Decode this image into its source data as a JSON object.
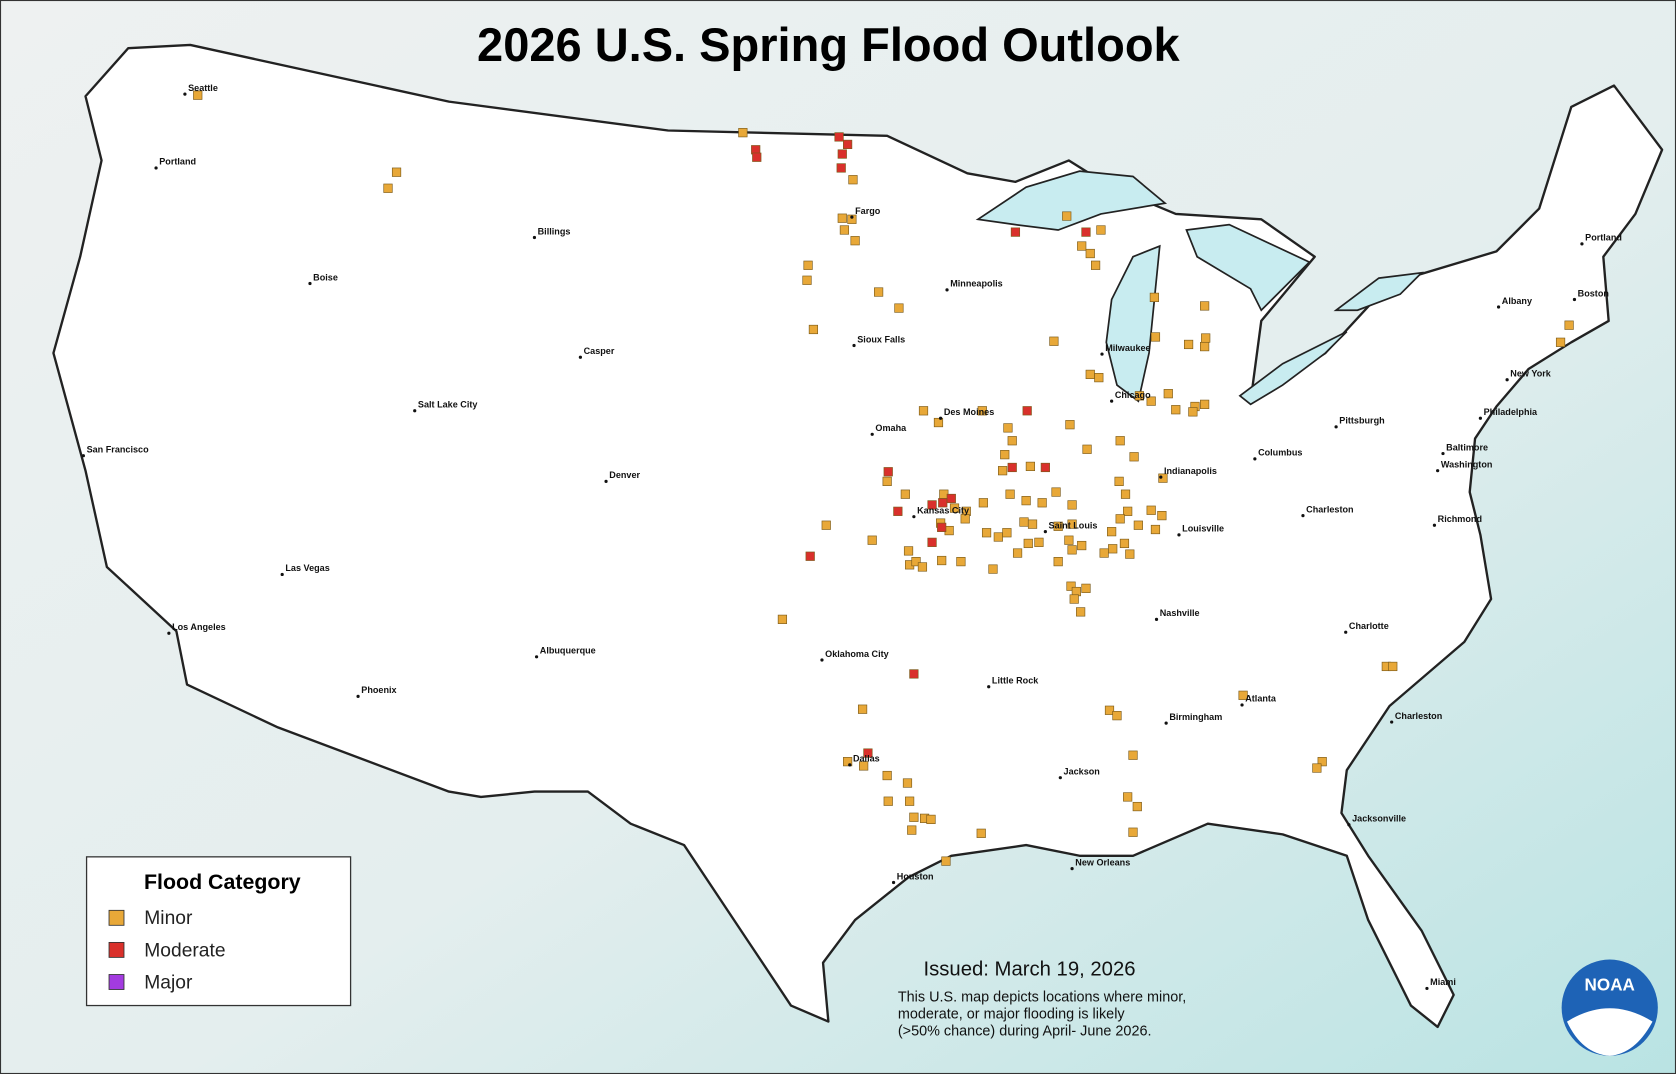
{
  "title": "2026 U.S. Spring Flood Outlook",
  "legend": {
    "title": "Flood Category",
    "items": [
      {
        "label": "Minor",
        "color": "#e8a838"
      },
      {
        "label": "Moderate",
        "color": "#d9302b"
      },
      {
        "label": "Major",
        "color": "#a33be0"
      }
    ]
  },
  "issued": "Issued: March 19, 2026",
  "description": [
    "This U.S. map depicts locations where minor,",
    "moderate, or major flooding is likely",
    "(>50% chance) during April- June 2026."
  ],
  "logo": "NOAA",
  "cities": [
    "Seattle",
    "Portland",
    "Billings",
    "Boise",
    "Casper",
    "Salt Lake City",
    "San Francisco",
    "Denver",
    "Las Vegas",
    "Los Angeles",
    "Albuquerque",
    "Phoenix",
    "Fargo",
    "Minneapolis",
    "Sioux Falls",
    "Omaha",
    "Des Moines",
    "Kansas City",
    "Oklahoma City",
    "Dallas",
    "Houston",
    "Little Rock",
    "Saint Louis",
    "Chicago",
    "Milwaukee",
    "Indianapolis",
    "Louisville",
    "Nashville",
    "Jackson",
    "Birmingham",
    "New Orleans",
    "Atlanta",
    "Columbus",
    "Pittsburgh",
    "Charleston",
    "Charlotte",
    "Charleston",
    "Jacksonville",
    "Miami",
    "Richmond",
    "Washington",
    "Baltimore",
    "Philadelphia",
    "New York",
    "Albany",
    "Boston",
    "Portland"
  ]
}
